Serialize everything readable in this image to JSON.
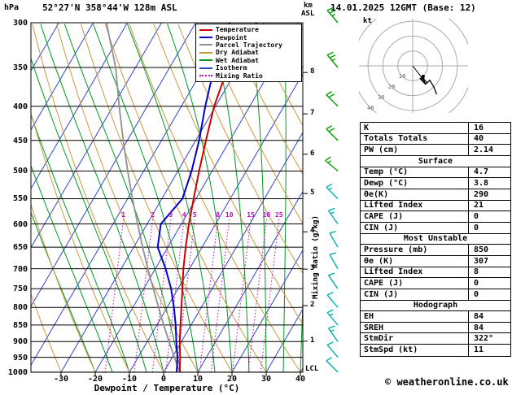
{
  "header": {
    "pressure_unit": "hPa",
    "station_title": "52°27'N 358°44'W 128m ASL",
    "km_label": "km",
    "asl_label": "ASL",
    "datetime_title": "14.01.2025 12GMT (Base: 12)"
  },
  "axes": {
    "pressure_ticks": [
      300,
      350,
      400,
      450,
      500,
      550,
      600,
      650,
      700,
      750,
      800,
      850,
      900,
      950,
      1000
    ],
    "temperature_ticks": [
      -30,
      -20,
      -10,
      0,
      10,
      20,
      30,
      40
    ],
    "x_axis_label": "Dewpoint / Temperature (°C)",
    "km_ticks": [
      1,
      2,
      3,
      4,
      5,
      6,
      7,
      8
    ],
    "lcl_label": "LCL",
    "mixing_ratio_axis_label": "Mixing Ratio (g/kg)"
  },
  "legend": {
    "items": [
      {
        "label": "Temperature",
        "color": "#cc0000",
        "style": "solid"
      },
      {
        "label": "Dewpoint",
        "color": "#0000cc",
        "style": "solid"
      },
      {
        "label": "Parcel Trajectory",
        "color": "#909090",
        "style": "solid"
      },
      {
        "label": "Dry Adiabat",
        "color": "#cc9944",
        "style": "solid"
      },
      {
        "label": "Wet Adiabat",
        "color": "#009922",
        "style": "solid"
      },
      {
        "label": "Isotherm",
        "color": "#3344cc",
        "style": "solid"
      },
      {
        "label": "Mixing Ratio",
        "color": "#c800c8",
        "style": "dotted"
      }
    ]
  },
  "hodograph": {
    "unit_label": "kt",
    "ring_values": [
      10,
      20,
      30,
      40
    ],
    "rings_kt": [
      10,
      20,
      30,
      40
    ]
  },
  "table": {
    "rows": [
      {
        "label": "K",
        "value": "16"
      },
      {
        "label": "Totals Totals",
        "value": "40"
      },
      {
        "label": "PW (cm)",
        "value": "2.14"
      },
      {
        "header": "Surface"
      },
      {
        "label": "Temp (°C)",
        "value": "4.7"
      },
      {
        "label": "Dewp (°C)",
        "value": "3.8"
      },
      {
        "label": "θe(K)",
        "value": "290"
      },
      {
        "label": "Lifted Index",
        "value": "21"
      },
      {
        "label": "CAPE (J)",
        "value": "0"
      },
      {
        "label": "CIN (J)",
        "value": "0"
      },
      {
        "header": "Most Unstable"
      },
      {
        "label": "Pressure (mb)",
        "value": "850"
      },
      {
        "label": "θe (K)",
        "value": "307"
      },
      {
        "label": "Lifted Index",
        "value": "8"
      },
      {
        "label": "CAPE (J)",
        "value": "0"
      },
      {
        "label": "CIN (J)",
        "value": "0"
      },
      {
        "header": "Hodograph"
      },
      {
        "label": "EH",
        "value": "84"
      },
      {
        "label": "SREH",
        "value": "84"
      },
      {
        "label": "StmDir",
        "value": "322°"
      },
      {
        "label": "StmSpd (kt)",
        "value": "11"
      }
    ]
  },
  "footer": {
    "copyright": "© weatheronline.co.uk"
  },
  "colors": {
    "grid": "#000000",
    "isotherm": "#3344cc",
    "dry_adiabat": "#cc9944",
    "wet_adiabat": "#009922",
    "mixing_ratio": "#c800c8",
    "temperature": "#cc0000",
    "dewpoint": "#0000cc",
    "parcel": "#909090",
    "barb_upper": "#00a000",
    "barb_lower": "#00b0b0"
  },
  "chart_data": {
    "type": "line",
    "subtype": "skew-t-log-p-sounding",
    "title": "52°27'N 358°44'W 128m ASL",
    "xlabel": "Dewpoint / Temperature (°C)",
    "ylabel": "hPa",
    "x_ticks_at_1000hPa": [
      -30,
      -20,
      -10,
      0,
      10,
      20,
      30,
      40
    ],
    "y_axis": {
      "scale": "log-pressure",
      "range_hPa": [
        1000,
        300
      ]
    },
    "altitude_scale_km": [
      1,
      2,
      3,
      4,
      5,
      6,
      7,
      8
    ],
    "lcl_near_hPa": 990,
    "series": [
      {
        "name": "Temperature",
        "color": "#cc0000",
        "points": [
          [
            1000,
            4.7
          ],
          [
            950,
            2.3
          ],
          [
            900,
            -0.5
          ],
          [
            850,
            -3.1
          ],
          [
            800,
            -5.8
          ],
          [
            750,
            -8.7
          ],
          [
            700,
            -11.8
          ],
          [
            650,
            -14.8
          ],
          [
            600,
            -17.8
          ],
          [
            550,
            -20.7
          ],
          [
            500,
            -23.8
          ],
          [
            450,
            -27.0
          ],
          [
            400,
            -30.4
          ],
          [
            350,
            -33.0
          ],
          [
            300,
            -32.2
          ]
        ]
      },
      {
        "name": "Dewpoint",
        "color": "#0000cc",
        "points": [
          [
            1000,
            3.8
          ],
          [
            950,
            1.5
          ],
          [
            900,
            -1.5
          ],
          [
            850,
            -4.5
          ],
          [
            800,
            -8.0
          ],
          [
            750,
            -12.0
          ],
          [
            700,
            -17.0
          ],
          [
            650,
            -23.0
          ],
          [
            600,
            -26.0
          ],
          [
            550,
            -24.0
          ],
          [
            500,
            -26.0
          ],
          [
            450,
            -29.0
          ],
          [
            400,
            -33.0
          ],
          [
            350,
            -37.0
          ],
          [
            300,
            -40.0
          ]
        ]
      },
      {
        "name": "Parcel Trajectory",
        "color": "#909090",
        "points": [
          [
            1000,
            4.7
          ],
          [
            950,
            0.6
          ],
          [
            900,
            -3.6
          ],
          [
            850,
            -8.0
          ],
          [
            800,
            -12.5
          ],
          [
            750,
            -17.2
          ],
          [
            700,
            -22.2
          ],
          [
            650,
            -27.4
          ],
          [
            600,
            -32.8
          ],
          [
            550,
            -38.6
          ],
          [
            500,
            -44.7
          ],
          [
            450,
            -51.2
          ],
          [
            400,
            -58.2
          ],
          [
            350,
            -65.8
          ],
          [
            300,
            -76.1
          ]
        ]
      }
    ],
    "mixing_ratio_lines_g_per_kg": [
      1,
      2,
      3,
      4,
      5,
      8,
      10,
      15,
      20,
      25
    ],
    "wind_barbs": [
      {
        "p": 300,
        "dir": 320,
        "spd": 25
      },
      {
        "p": 350,
        "dir": 320,
        "spd": 25
      },
      {
        "p": 400,
        "dir": 315,
        "spd": 20
      },
      {
        "p": 450,
        "dir": 315,
        "spd": 20
      },
      {
        "p": 500,
        "dir": 310,
        "spd": 15
      },
      {
        "p": 550,
        "dir": 315,
        "spd": 15
      },
      {
        "p": 600,
        "dir": 325,
        "spd": 15
      },
      {
        "p": 650,
        "dir": 330,
        "spd": 10
      },
      {
        "p": 700,
        "dir": 330,
        "spd": 10
      },
      {
        "p": 750,
        "dir": 325,
        "spd": 10
      },
      {
        "p": 800,
        "dir": 320,
        "spd": 10
      },
      {
        "p": 850,
        "dir": 320,
        "spd": 15
      },
      {
        "p": 900,
        "dir": 325,
        "spd": 15
      },
      {
        "p": 950,
        "dir": 320,
        "spd": 10
      },
      {
        "p": 1000,
        "dir": 315,
        "spd": 10
      }
    ],
    "hodograph": {
      "storm_dir": 322,
      "storm_spd_kt": 11,
      "rings_kt": [
        10,
        20,
        30,
        40
      ]
    },
    "indices": {
      "K": 16,
      "totals_totals": 40,
      "pw_cm": 2.14,
      "surface": {
        "temp_c": 4.7,
        "dewp_c": 3.8,
        "theta_e_k": 290,
        "lifted_index": 21,
        "cape_j": 0,
        "cin_j": 0
      },
      "most_unstable": {
        "pressure_mb": 850,
        "theta_e_k": 307,
        "lifted_index": 8,
        "cape_j": 0,
        "cin_j": 0
      },
      "hodograph": {
        "EH": 84,
        "SREH": 84,
        "storm_dir_deg": 322,
        "storm_spd_kt": 11
      }
    }
  }
}
